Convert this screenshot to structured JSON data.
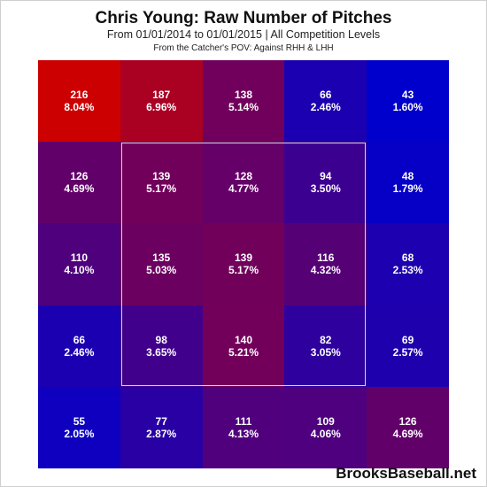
{
  "title": "Chris Young: Raw Number of Pitches",
  "subtitle": "From 01/01/2014 to 01/01/2015 | All Competition Levels",
  "caption": "From the Catcher's POV:  Against RHH & LHH",
  "watermark": "BrooksBaseball.net",
  "colors": {
    "low": "#0000cc",
    "high": "#cc0000",
    "text": "#ffffff",
    "zone_border": "#d8d8d8"
  },
  "chart_data": {
    "type": "heatmap",
    "rows": 5,
    "cols": 5,
    "cells": [
      [
        {
          "count": "216",
          "pct": "8.04%"
        },
        {
          "count": "187",
          "pct": "6.96%"
        },
        {
          "count": "138",
          "pct": "5.14%"
        },
        {
          "count": "66",
          "pct": "2.46%"
        },
        {
          "count": "43",
          "pct": "1.60%"
        }
      ],
      [
        {
          "count": "126",
          "pct": "4.69%"
        },
        {
          "count": "139",
          "pct": "5.17%"
        },
        {
          "count": "128",
          "pct": "4.77%"
        },
        {
          "count": "94",
          "pct": "3.50%"
        },
        {
          "count": "48",
          "pct": "1.79%"
        }
      ],
      [
        {
          "count": "110",
          "pct": "4.10%"
        },
        {
          "count": "135",
          "pct": "5.03%"
        },
        {
          "count": "139",
          "pct": "5.17%"
        },
        {
          "count": "116",
          "pct": "4.32%"
        },
        {
          "count": "68",
          "pct": "2.53%"
        }
      ],
      [
        {
          "count": "66",
          "pct": "2.46%"
        },
        {
          "count": "98",
          "pct": "3.65%"
        },
        {
          "count": "140",
          "pct": "5.21%"
        },
        {
          "count": "82",
          "pct": "3.05%"
        },
        {
          "count": "69",
          "pct": "2.57%"
        }
      ],
      [
        {
          "count": "55",
          "pct": "2.05%"
        },
        {
          "count": "77",
          "pct": "2.87%"
        },
        {
          "count": "111",
          "pct": "4.13%"
        },
        {
          "count": "109",
          "pct": "4.06%"
        },
        {
          "count": "126",
          "pct": "4.69%"
        }
      ]
    ],
    "strike_zone": "inner 3x3 cells",
    "color_scale": "blue (low) to red (high)"
  }
}
